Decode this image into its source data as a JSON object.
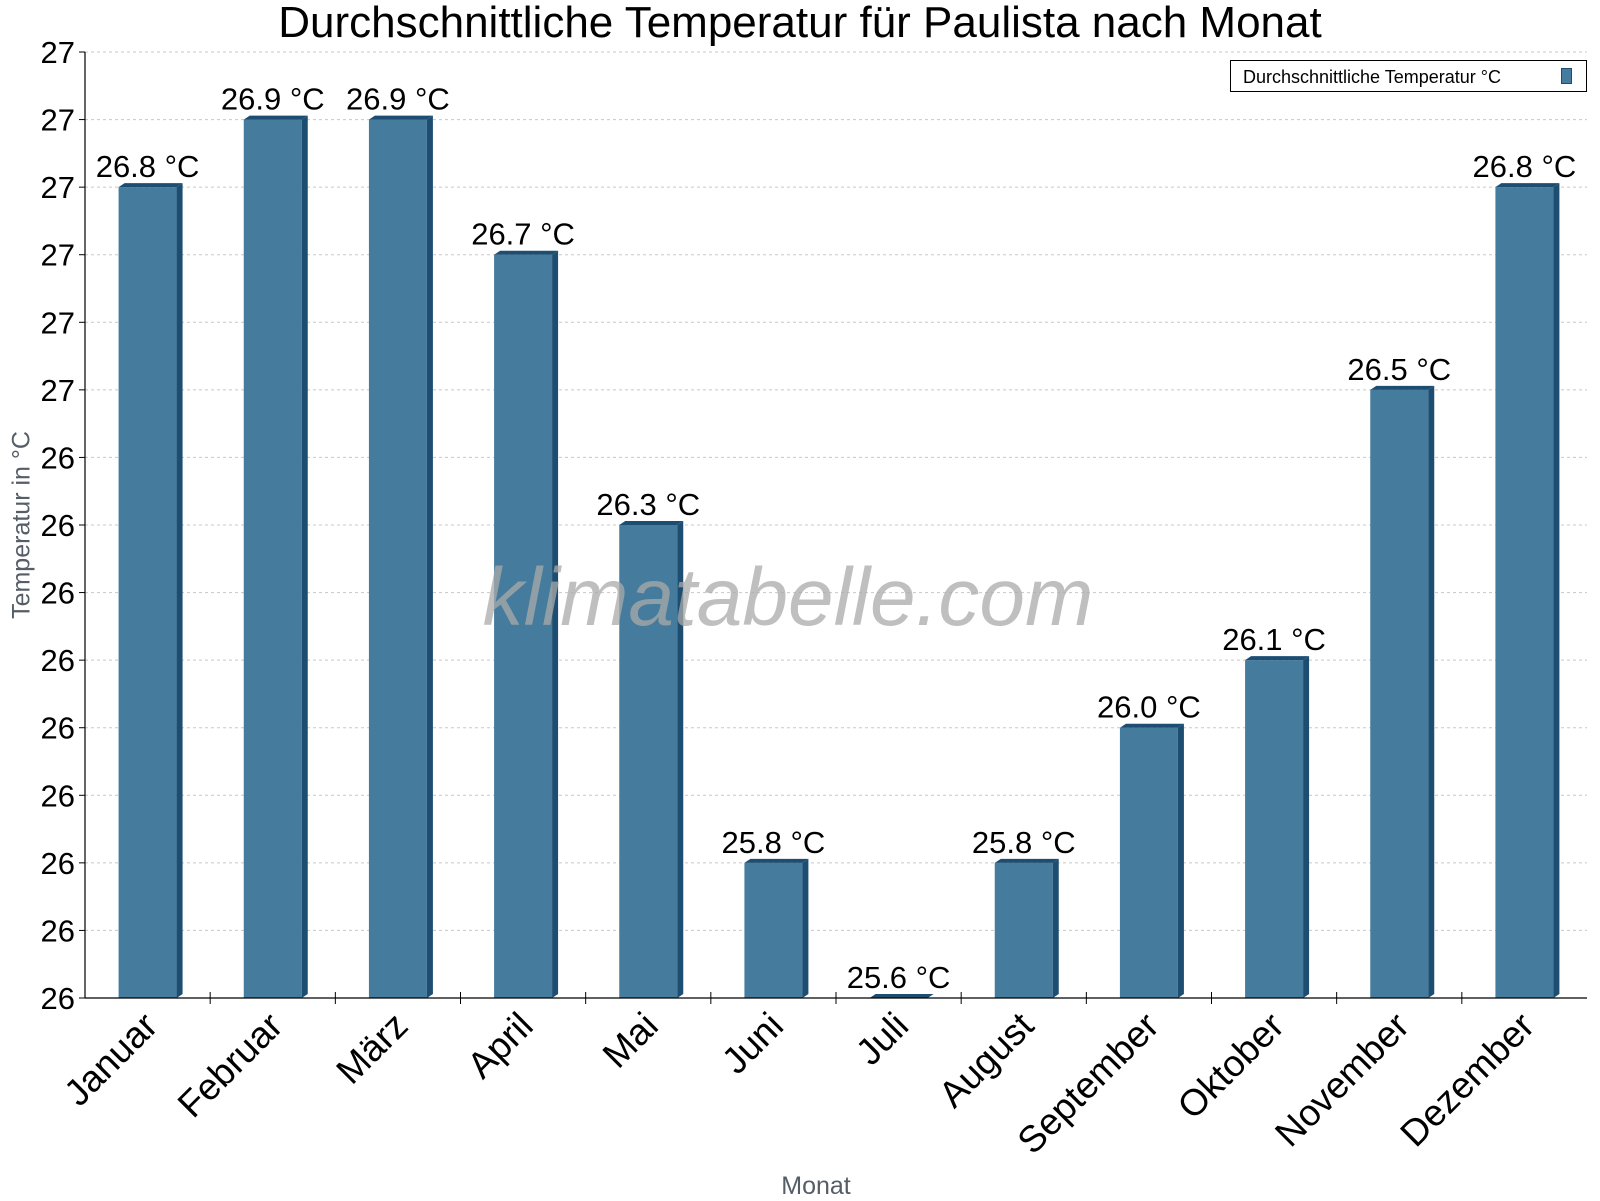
{
  "chart_data": {
    "type": "bar",
    "title": "Durchschnittliche Temperatur für Paulista nach Monat",
    "xlabel": "Monat",
    "ylabel": "Temperatur in °C",
    "categories": [
      "Januar",
      "Februar",
      "März",
      "April",
      "Mai",
      "Juni",
      "Juli",
      "August",
      "September",
      "Oktober",
      "November",
      "Dezember"
    ],
    "series": [
      {
        "name": "Durchschnittliche Temperatur °C",
        "values": [
          26.8,
          26.9,
          26.9,
          26.7,
          26.3,
          25.8,
          25.6,
          25.8,
          26.0,
          26.1,
          26.5,
          26.8
        ]
      }
    ],
    "data_labels": [
      "26.8 °C",
      "26.9 °C",
      "26.9 °C",
      "26.7 °C",
      "26.3 °C",
      "25.8 °C",
      "25.6 °C",
      "25.8 °C",
      "26.0 °C",
      "26.1 °C",
      "26.5 °C",
      "26.8 °C"
    ],
    "ylim": [
      25.6,
      27.0
    ],
    "ytick_values": [
      25.6,
      25.7,
      25.8,
      25.9,
      26.0,
      26.1,
      26.2,
      26.3,
      26.4,
      26.5,
      26.6,
      26.7,
      26.8,
      26.9,
      27.0
    ],
    "ytick_labels": [
      "26",
      "26",
      "26",
      "26",
      "26",
      "26",
      "26",
      "26",
      "26",
      "27",
      "27",
      "27",
      "27",
      "27",
      "27"
    ],
    "grid": true,
    "legend_position": "top-right",
    "watermark": "klimatabelle.com",
    "colors": {
      "bar": "#457b9d",
      "bar_edge": "#1d4e72",
      "grid": "#c8c8c8"
    }
  }
}
